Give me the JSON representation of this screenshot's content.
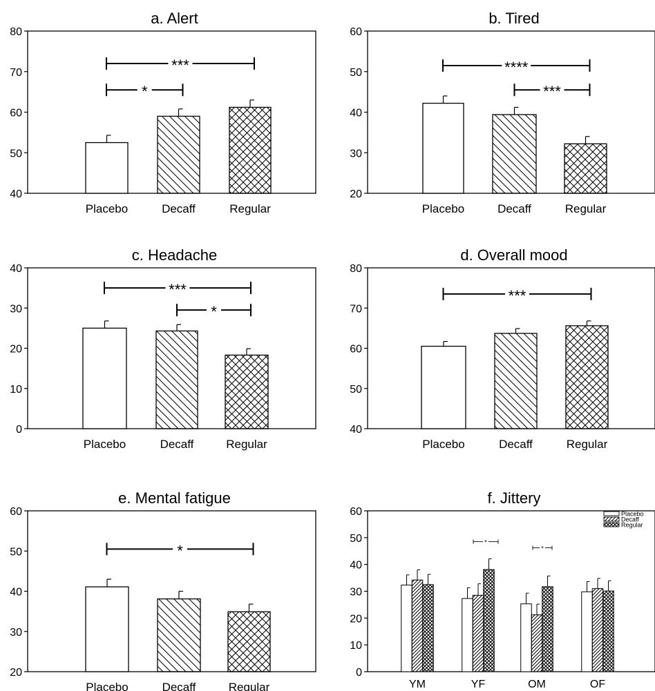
{
  "colors": {
    "axis": "#000000",
    "bar_fill": "#ffffff",
    "bar_stroke": "#000000",
    "hatch": "#000000"
  },
  "chart_data": [
    {
      "id": "a",
      "type": "bar",
      "title": "a. Alert",
      "categories": [
        "Placebo",
        "Decaff",
        "Regular"
      ],
      "values": [
        52.5,
        59,
        61.2
      ],
      "errors": [
        1.8,
        1.8,
        1.8
      ],
      "ylim": [
        40,
        80
      ],
      "yticks": [
        "40",
        "50",
        "60",
        "70",
        "80"
      ],
      "patterns": [
        "none",
        "diag",
        "cross"
      ],
      "grid": false,
      "significance": [
        {
          "from": 0,
          "to": 2,
          "y": 72,
          "label": "***"
        },
        {
          "from": 0,
          "to": 1,
          "y": 65.5,
          "label": "*"
        }
      ]
    },
    {
      "id": "b",
      "type": "bar",
      "title": "b. Tired",
      "categories": [
        "Placebo",
        "Decaff",
        "Regular"
      ],
      "values": [
        42.2,
        39.4,
        32.2
      ],
      "errors": [
        1.8,
        1.8,
        1.8
      ],
      "ylim": [
        20,
        60
      ],
      "yticks": [
        "20",
        "30",
        "40",
        "50",
        "60"
      ],
      "patterns": [
        "none",
        "diag",
        "cross"
      ],
      "grid": false,
      "significance": [
        {
          "from": 0,
          "to": 2,
          "y": 51.5,
          "label": "****"
        },
        {
          "from": 1,
          "to": 2,
          "y": 45.5,
          "label": "***"
        }
      ]
    },
    {
      "id": "c",
      "type": "bar",
      "title": "c. Headache",
      "categories": [
        "Placebo",
        "Decaff",
        "Regular"
      ],
      "values": [
        25,
        24.3,
        18.3
      ],
      "errors": [
        1.8,
        1.6,
        1.6
      ],
      "ylim": [
        0,
        40
      ],
      "yticks": [
        "0",
        "10",
        "20",
        "30",
        "40"
      ],
      "patterns": [
        "none",
        "diag",
        "cross"
      ],
      "grid": false,
      "significance": [
        {
          "from": 0,
          "to": 2,
          "y": 35,
          "label": "***"
        },
        {
          "from": 1,
          "to": 2,
          "y": 29.5,
          "label": "*"
        }
      ]
    },
    {
      "id": "d",
      "type": "bar",
      "title": "d. Overall mood",
      "categories": [
        "Placebo",
        "Decaff",
        "Regular"
      ],
      "values": [
        60.5,
        63.7,
        65.6
      ],
      "errors": [
        1.2,
        1.2,
        1.2
      ],
      "ylim": [
        40,
        80
      ],
      "yticks": [
        "40",
        "50",
        "60",
        "70",
        "80"
      ],
      "patterns": [
        "none",
        "diag",
        "cross"
      ],
      "grid": false,
      "significance": [
        {
          "from": 0,
          "to": 2,
          "y": 73.5,
          "label": "***"
        }
      ]
    },
    {
      "id": "e",
      "type": "bar",
      "title": "e. Mental fatigue",
      "categories": [
        "Placebo",
        "Decaff",
        "Regular"
      ],
      "values": [
        41.1,
        38.1,
        34.9
      ],
      "errors": [
        1.9,
        1.9,
        1.9
      ],
      "ylim": [
        20,
        60
      ],
      "yticks": [
        "20",
        "30",
        "40",
        "50",
        "60"
      ],
      "patterns": [
        "none",
        "diag",
        "cross"
      ],
      "grid": false,
      "significance": [
        {
          "from": 0,
          "to": 2,
          "y": 50.5,
          "label": "*"
        }
      ]
    },
    {
      "id": "f",
      "type": "bar",
      "title": "f. Jittery",
      "categories": [
        "YM",
        "YF",
        "OM",
        "OF"
      ],
      "ylim": [
        0,
        60
      ],
      "yticks": [
        "0",
        "10",
        "20",
        "30",
        "40",
        "50",
        "60"
      ],
      "grid": false,
      "legend_position": "top-right",
      "series": [
        {
          "name": "Placebo",
          "pattern": "none",
          "values": [
            32.3,
            27.3,
            25.3,
            29.8
          ],
          "errors": [
            3.8,
            4,
            4,
            3.8
          ]
        },
        {
          "name": "Decaff",
          "pattern": "diag",
          "values": [
            34.2,
            28.5,
            21.2,
            31
          ],
          "errors": [
            3.8,
            4.3,
            4,
            3.8
          ]
        },
        {
          "name": "Regular",
          "pattern": "cross",
          "values": [
            32.5,
            38.1,
            31.7,
            30.1
          ],
          "errors": [
            3.8,
            4,
            4,
            3.8
          ]
        }
      ],
      "significance": [
        {
          "group": 1,
          "y": 48.5,
          "label": "*"
        },
        {
          "group": 2,
          "y": 46.2,
          "label": "*"
        }
      ]
    }
  ]
}
